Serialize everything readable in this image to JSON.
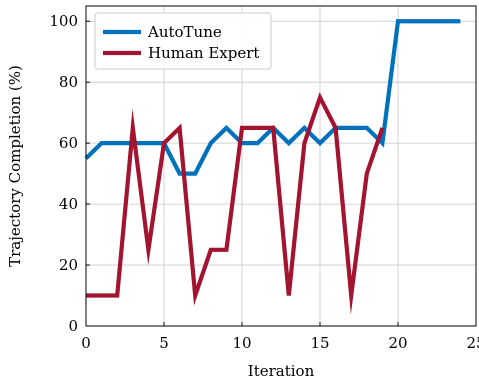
{
  "chart_data": {
    "type": "line",
    "xlabel": "Iteration",
    "ylabel": "Trajectory Completion (%)",
    "xlim": [
      0,
      25
    ],
    "ylim": [
      0,
      105
    ],
    "xticks": [
      0,
      5,
      10,
      15,
      20,
      25
    ],
    "yticks": [
      0,
      20,
      40,
      60,
      80,
      100
    ],
    "grid": true,
    "legend_position": "top-left",
    "series": [
      {
        "name": "AutoTune",
        "color": "#0072bd",
        "x": [
          0,
          1,
          2,
          3,
          4,
          5,
          6,
          7,
          8,
          9,
          10,
          11,
          12,
          13,
          14,
          15,
          16,
          17,
          18,
          19,
          20,
          21,
          22,
          23,
          24
        ],
        "y": [
          55,
          60,
          60,
          60,
          60,
          60,
          50,
          50,
          60,
          65,
          60,
          60,
          65,
          60,
          65,
          60,
          65,
          65,
          65,
          60,
          100,
          100,
          100,
          100,
          100
        ]
      },
      {
        "name": "Human Expert",
        "color": "#a2142f",
        "x": [
          0,
          1,
          2,
          3,
          4,
          5,
          6,
          7,
          8,
          9,
          10,
          11,
          12,
          13,
          14,
          15,
          16,
          17,
          18,
          19
        ],
        "y": [
          10,
          10,
          10,
          65,
          25,
          60,
          65,
          10,
          25,
          25,
          65,
          65,
          65,
          10,
          60,
          75,
          65,
          10,
          50,
          65
        ]
      }
    ]
  }
}
